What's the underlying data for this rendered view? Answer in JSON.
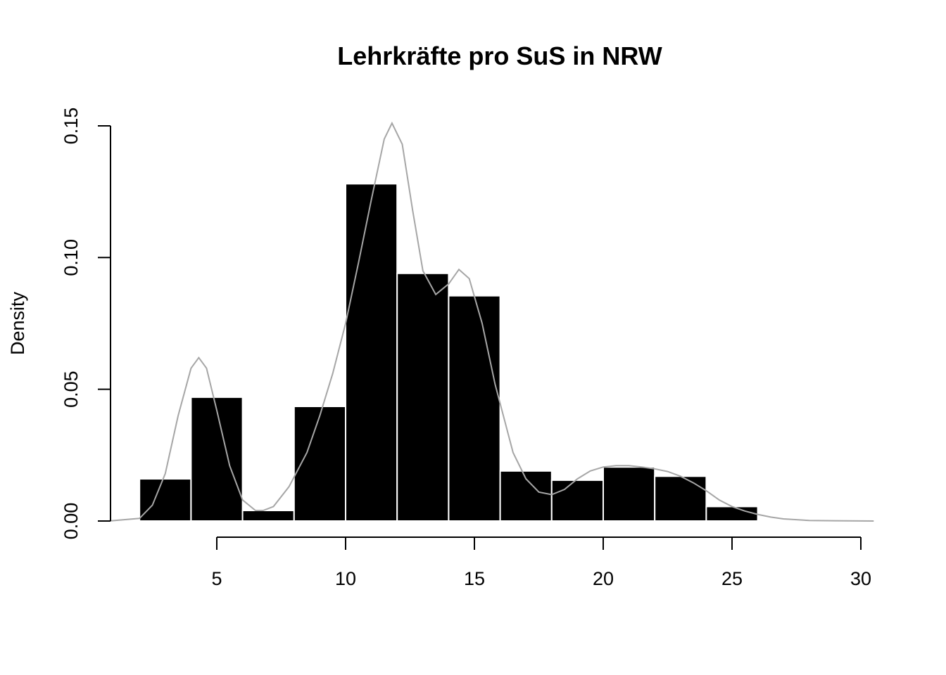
{
  "chart_data": {
    "type": "bar",
    "title": "Lehrkräfte pro SuS in NRW",
    "xlabel": "",
    "ylabel": "Density",
    "xlim": [
      0.8,
      30.5
    ],
    "ylim": [
      0,
      0.15
    ],
    "x_ticks": [
      5,
      10,
      15,
      20,
      25,
      30
    ],
    "x_tick_labels": [
      "5",
      "10",
      "15",
      "20",
      "25",
      "30"
    ],
    "y_ticks": [
      0,
      0.05,
      0.1,
      0.15
    ],
    "y_tick_labels": [
      "0.00",
      "0.05",
      "0.10",
      "0.15"
    ],
    "bins": [
      {
        "from": 2,
        "to": 4,
        "density": 0.016
      },
      {
        "from": 4,
        "to": 6,
        "density": 0.047
      },
      {
        "from": 6,
        "to": 8,
        "density": 0.004
      },
      {
        "from": 8,
        "to": 10,
        "density": 0.0435
      },
      {
        "from": 10,
        "to": 12,
        "density": 0.128
      },
      {
        "from": 12,
        "to": 14,
        "density": 0.094
      },
      {
        "from": 14,
        "to": 16,
        "density": 0.0855
      },
      {
        "from": 16,
        "to": 18,
        "density": 0.019
      },
      {
        "from": 18,
        "to": 20,
        "density": 0.0155
      },
      {
        "from": 20,
        "to": 22,
        "density": 0.0205
      },
      {
        "from": 22,
        "to": 24,
        "density": 0.017
      },
      {
        "from": 24,
        "to": 26,
        "density": 0.0055
      },
      {
        "from": 26,
        "to": 28,
        "density": 0.0003
      }
    ],
    "density_curve": {
      "color": "#a6a6a6",
      "x": [
        0.8,
        2.0,
        2.5,
        3.0,
        3.5,
        4.0,
        4.3,
        4.6,
        5.0,
        5.5,
        6.0,
        6.5,
        6.8,
        7.2,
        7.8,
        8.5,
        9.0,
        9.5,
        10.0,
        10.5,
        11.0,
        11.5,
        11.8,
        12.2,
        12.6,
        13.0,
        13.5,
        14.0,
        14.4,
        14.8,
        15.3,
        15.8,
        16.5,
        17.0,
        17.5,
        18.0,
        18.5,
        19.0,
        19.5,
        20.0,
        20.5,
        21.0,
        21.5,
        22.0,
        22.5,
        23.0,
        23.5,
        24.0,
        24.5,
        25.0,
        25.5,
        26.0,
        26.5,
        27.0,
        28.0,
        29.0,
        30.5
      ],
      "y": [
        0.0,
        0.001,
        0.006,
        0.018,
        0.04,
        0.058,
        0.062,
        0.058,
        0.042,
        0.021,
        0.008,
        0.004,
        0.004,
        0.0055,
        0.013,
        0.026,
        0.04,
        0.056,
        0.075,
        0.098,
        0.122,
        0.145,
        0.151,
        0.143,
        0.118,
        0.095,
        0.086,
        0.09,
        0.0955,
        0.092,
        0.075,
        0.052,
        0.026,
        0.016,
        0.011,
        0.01,
        0.012,
        0.016,
        0.019,
        0.0205,
        0.021,
        0.021,
        0.0205,
        0.0198,
        0.0188,
        0.017,
        0.0145,
        0.0115,
        0.008,
        0.0055,
        0.0038,
        0.0025,
        0.0015,
        0.0008,
        0.0002,
        0.0001,
        0.0
      ]
    }
  }
}
